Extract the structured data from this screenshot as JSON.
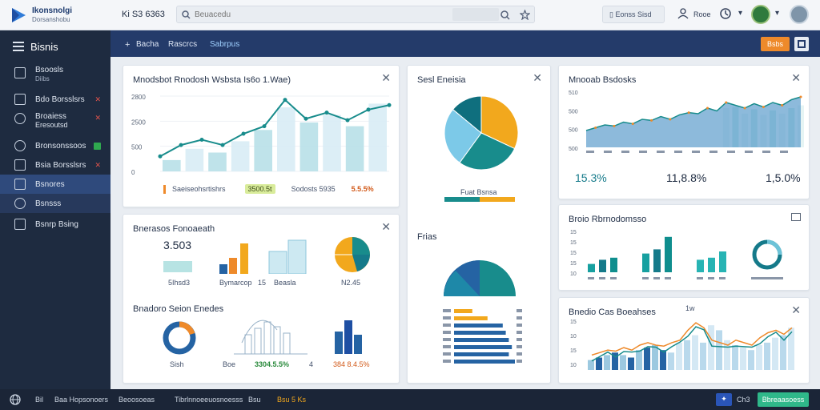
{
  "app": {
    "logo_line1": "Ikonsnolgi",
    "logo_line2": "Dorsanshobu",
    "mode": "Ki S3 6363"
  },
  "search": {
    "placeholder": "Beuacedu"
  },
  "top": {
    "pill_label": "Eonss Sisd",
    "user_label": "Rooe"
  },
  "sidebar": {
    "title": "Bisnis",
    "items": [
      {
        "label": "Bsoosls",
        "sub": "Diibs"
      },
      {
        "label": "Bdo Borsslsrs"
      },
      {
        "label": "Broaiess",
        "sub": "Eresoutsd"
      },
      {
        "label": "Bronsonssoos"
      },
      {
        "label": "Bsia Borsslsrs"
      },
      {
        "label": "Bsnores"
      },
      {
        "label": "Bsnsss"
      },
      {
        "label": "Bsnrp Bsing"
      }
    ]
  },
  "subbar": {
    "tabs": [
      "Bacha",
      "Rascrcs",
      "Sabrpus"
    ],
    "action_label": "Bsbs"
  },
  "card1": {
    "title": "Mnodsbot Rnodosh Wsbsta Is6o 1.Wae)",
    "legend1": "Saeiseohsrtishrs",
    "badge": "3500.5t",
    "legend2": "Sodosts 5935",
    "pct": "5.5.5%"
  },
  "card2": {
    "title": "Sesl Eneisia",
    "legend": "Fuat Bsnsa"
  },
  "card3": {
    "title": "Mnooab Bsdosks",
    "stats": [
      "15.3%",
      "11,8.8%",
      "1,5.0%"
    ]
  },
  "card4": {
    "title": "Bnerasos Fonoaeath",
    "value": "3.503",
    "labels": [
      "5Ihsd3",
      "Bymarcop",
      "15",
      "Beasla",
      "N2.45"
    ]
  },
  "card5": {
    "title": "Frias"
  },
  "card6": {
    "title": "Broio Rbrnodomsso"
  },
  "card7": {
    "title": "Bnadoro Seion Enedes",
    "labels": [
      "Sish",
      "Boe",
      "3304.5.5%",
      "4",
      "384 8.4.5%"
    ]
  },
  "card8": {
    "title": "Bnedio Cas Boeahses",
    "peak": "1w"
  },
  "bottom": {
    "items": [
      "Bil",
      "Baa Hopsonoers",
      "Beoosoeas",
      "Tibrlnnoeeuosnoesss",
      "Bsu",
      "Bsu 5 Ks"
    ],
    "ch": "Ch3",
    "btn": "Bbreaasoess"
  },
  "chart_data": [
    {
      "type": "line",
      "title": "Mnodsbot Rnodosh Wsbsta Is6o 1.Wae)",
      "yticks": [
        "2800",
        "2500",
        "500",
        "0"
      ],
      "x": [
        1,
        2,
        3,
        4,
        5,
        6,
        7,
        8,
        9,
        10,
        11,
        12
      ],
      "series": [
        {
          "values": [
            0.2,
            0.35,
            0.42,
            0.35,
            0.5,
            0.6,
            0.95,
            0.7,
            0.78,
            0.68,
            0.82,
            0.88
          ]
        }
      ],
      "bars": [
        0.15,
        0.3,
        0.25,
        0.4,
        0.55,
        0.85,
        0.65,
        0.75,
        0.6,
        0.9
      ]
    },
    {
      "type": "pie",
      "title": "Sesl Eneisia",
      "values": [
        32,
        28,
        26,
        14
      ],
      "colors": [
        "#f2a81d",
        "#188c8c",
        "#7cc9e8",
        "#0f6f7e"
      ]
    },
    {
      "type": "area",
      "title": "Mnooab Bsdosks",
      "yticks": [
        "510",
        "500",
        "500",
        "500"
      ]
    },
    {
      "type": "bar",
      "title": "Broio Rbrnodomsso",
      "yticks": [
        "15",
        "15",
        "15",
        "15",
        "10"
      ]
    }
  ]
}
